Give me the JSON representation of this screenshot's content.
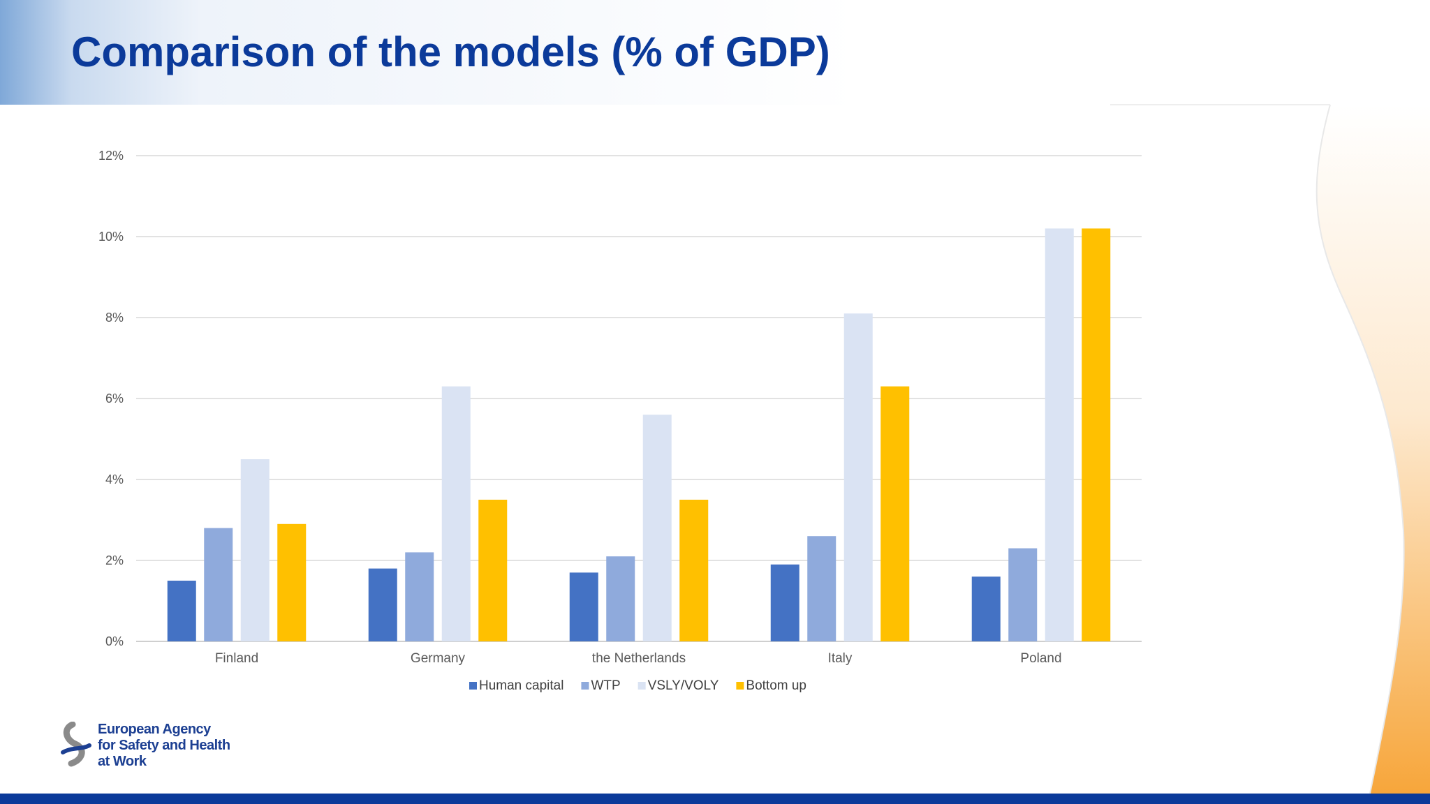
{
  "slide": {
    "title": "Comparison of the models (% of GDP)",
    "logo": {
      "lines": [
        "European Agency",
        "for Safety and Health",
        "at Work"
      ]
    },
    "colors": {
      "title": "#0b3a9a",
      "footer_bar": "#0b3a9a",
      "accent_orange": "#f7a63b"
    }
  },
  "chart_data": {
    "type": "bar",
    "title": "",
    "xlabel": "",
    "ylabel": "",
    "categories": [
      "Finland",
      "Germany",
      "the Netherlands",
      "Italy",
      "Poland"
    ],
    "series": [
      {
        "name": "Human capital",
        "color": "#4472c4",
        "values": [
          1.5,
          1.8,
          1.7,
          1.9,
          1.6
        ]
      },
      {
        "name": "WTP",
        "color": "#8faadc",
        "values": [
          2.8,
          2.2,
          2.1,
          2.6,
          2.3
        ]
      },
      {
        "name": "VSLY/VOLY",
        "color": "#dae3f3",
        "values": [
          4.5,
          6.3,
          5.6,
          8.1,
          10.2
        ]
      },
      {
        "name": "Bottom up",
        "color": "#ffc000",
        "values": [
          2.9,
          3.5,
          3.5,
          6.3,
          10.2
        ]
      }
    ],
    "ylim": [
      0,
      12
    ],
    "yticks": [
      0,
      2,
      4,
      6,
      8,
      10,
      12
    ],
    "ytick_labels": [
      "0%",
      "2%",
      "4%",
      "6%",
      "8%",
      "10%",
      "12%"
    ],
    "grid": true,
    "legend_position": "bottom"
  }
}
